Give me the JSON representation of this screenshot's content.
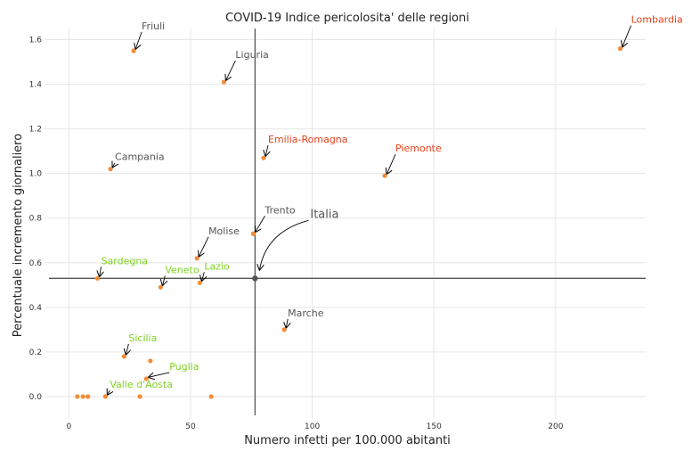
{
  "chart_data": {
    "type": "scatter",
    "title": "COVID-19 Indice pericolosita' delle regioni",
    "xlabel": "Numero infetti per 100.000 abitanti",
    "ylabel": "Percentuale incremento giornaliero",
    "xlim": [
      -10,
      237
    ],
    "ylim": [
      -0.1,
      1.65
    ],
    "xticks": [
      "0",
      "50",
      "100",
      "150",
      "200"
    ],
    "yticks": [
      "0.0",
      "0.2",
      "0.4",
      "0.6",
      "0.8",
      "1.0",
      "1.2",
      "1.4",
      "1.6"
    ],
    "grid": true,
    "point_color": "#f28c38",
    "reference_lines": {
      "x": 76.5,
      "y": 0.53
    },
    "reference_point": {
      "x": 76.5,
      "y": 0.53,
      "label": "Italia"
    },
    "colors": {
      "high": "#e8401c",
      "medium": "#555555",
      "low": "#7ed321"
    },
    "points": [
      {
        "x": 226.6,
        "y": 1.56,
        "label": "Lombardia",
        "level": "high"
      },
      {
        "x": 26.6,
        "y": 1.55,
        "label": "Friuli",
        "level": "medium"
      },
      {
        "x": 63.7,
        "y": 1.41,
        "label": "Liguria",
        "level": "medium"
      },
      {
        "x": 80.0,
        "y": 1.07,
        "label": "Emilia-Romagna",
        "level": "high"
      },
      {
        "x": 129.8,
        "y": 0.99,
        "label": "Piemonte",
        "level": "high"
      },
      {
        "x": 17.1,
        "y": 1.02,
        "label": "Campania",
        "level": "medium"
      },
      {
        "x": 75.8,
        "y": 0.73,
        "label": "Trento",
        "level": "medium"
      },
      {
        "x": 52.6,
        "y": 0.62,
        "label": "Molise",
        "level": "medium"
      },
      {
        "x": 11.8,
        "y": 0.53,
        "label": "Sardegna",
        "level": "low"
      },
      {
        "x": 37.7,
        "y": 0.49,
        "label": "Veneto",
        "level": "low"
      },
      {
        "x": 53.8,
        "y": 0.51,
        "label": "Lazio",
        "level": "low"
      },
      {
        "x": 88.5,
        "y": 0.3,
        "label": "Marche",
        "level": "medium"
      },
      {
        "x": 22.7,
        "y": 0.18,
        "label": "Sicilia",
        "level": "low"
      },
      {
        "x": 33.5,
        "y": 0.16,
        "label": "",
        "level": ""
      },
      {
        "x": 31.8,
        "y": 0.08,
        "label": "Puglia",
        "level": "low"
      },
      {
        "x": 15.0,
        "y": 0.0,
        "label": "Valle d'Aosta",
        "level": "low"
      },
      {
        "x": 3.5,
        "y": 0.0,
        "label": "",
        "level": ""
      },
      {
        "x": 5.8,
        "y": 0.0,
        "label": "",
        "level": ""
      },
      {
        "x": 7.8,
        "y": 0.0,
        "label": "",
        "level": ""
      },
      {
        "x": 29.2,
        "y": 0.0,
        "label": "",
        "level": ""
      },
      {
        "x": 58.5,
        "y": 0.0,
        "label": "",
        "level": ""
      }
    ]
  }
}
